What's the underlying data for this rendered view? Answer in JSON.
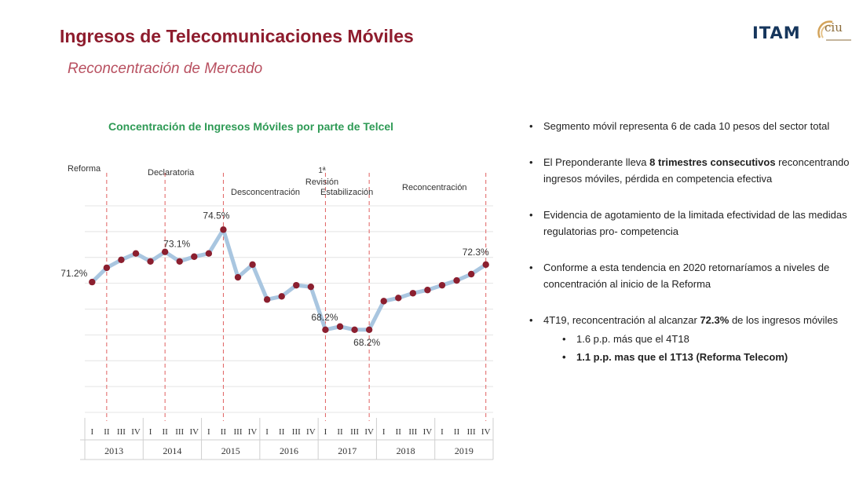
{
  "header": {
    "title": "Ingresos de Telecomunicaciones Móviles",
    "subtitle": "Reconcentración de Mercado",
    "logo_itam": "ITAM",
    "logo_ciu": "CIU"
  },
  "colors": {
    "title": "#8e1c2d",
    "line": "#a9c6e0",
    "marker": "#8b1f2f",
    "event_line": "#e06060",
    "chart_title": "#2e9a55"
  },
  "chart_data": {
    "type": "line",
    "title": "Concentración de Ingresos Móviles por parte de Telcel",
    "x": [
      "I",
      "II",
      "III",
      "IV",
      "I",
      "II",
      "III",
      "IV",
      "I",
      "II",
      "III",
      "IV",
      "I",
      "II",
      "III",
      "IV",
      "I",
      "II",
      "III",
      "IV",
      "I",
      "II",
      "III",
      "IV",
      "I",
      "II",
      "III",
      "IV"
    ],
    "years": [
      "2013",
      "2014",
      "2015",
      "2016",
      "2017",
      "2018",
      "2019"
    ],
    "series": [
      {
        "values": [
          71.2,
          72.1,
          72.6,
          73.0,
          72.5,
          73.1,
          72.5,
          72.8,
          73.0,
          74.5,
          71.5,
          72.3,
          70.1,
          70.3,
          71.0,
          70.9,
          68.2,
          68.4,
          68.2,
          68.2,
          70.0,
          70.2,
          70.5,
          70.7,
          71.0,
          71.3,
          71.7,
          72.3
        ]
      }
    ],
    "ylim": [
      63,
      76
    ],
    "grid": true,
    "data_labels": [
      {
        "index": 0,
        "text": "71.2%"
      },
      {
        "index": 5,
        "text": "73.1%"
      },
      {
        "index": 9,
        "text": "74.5%"
      },
      {
        "index": 16,
        "text": "68.2%"
      },
      {
        "index": 19,
        "text": "68.2%"
      },
      {
        "index": 27,
        "text": "72.3%"
      }
    ],
    "events": [
      {
        "index": 1,
        "label": "Reforma"
      },
      {
        "index": 5,
        "label": "Declaratoria"
      },
      {
        "index": 9,
        "label": "Desconcentración"
      },
      {
        "index": 16,
        "label": "1ª Revisión"
      },
      {
        "index": 19,
        "label": "Estabilización"
      },
      {
        "index": 27,
        "label": "Reconcentración"
      }
    ]
  },
  "bullets": [
    {
      "pre": "Segmento móvil representa 6 de cada 10 pesos del sector total",
      "bold": "",
      "post": ""
    },
    {
      "pre": "El Preponderante lleva ",
      "bold": "8 trimestres consecutivos",
      "post": " reconcentrando ingresos móviles, pérdida en competencia efectiva"
    },
    {
      "pre": "Evidencia de agotamiento de la limitada efectividad de las medidas regulatorias pro- competencia",
      "bold": "",
      "post": ""
    },
    {
      "pre": "Conforme a esta tendencia en 2020 retornaríamos a niveles de concentración al inicio de la Reforma",
      "bold": "",
      "post": ""
    },
    {
      "pre": "4T19, reconcentración al alcanzar ",
      "bold": "72.3%",
      "post": " de los ingresos móviles"
    }
  ],
  "sub_bullets": [
    {
      "text": "1.6 p.p. más que el 4T18",
      "bold": false
    },
    {
      "text": "1.1 p.p. mas que el 1T13 (Reforma Telecom)",
      "bold": true
    }
  ]
}
